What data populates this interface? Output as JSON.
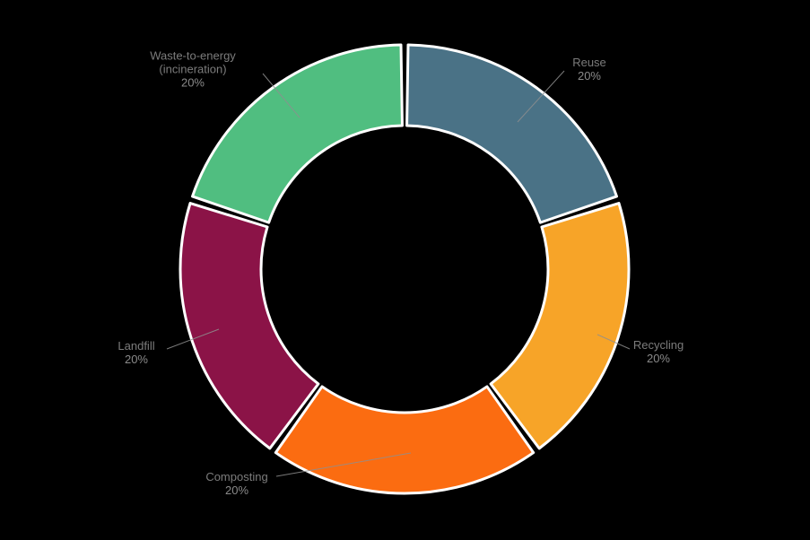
{
  "chart_data": {
    "type": "pie",
    "variant": "donut",
    "title": "",
    "legend_position": "none (direct labels with leader lines)",
    "categories": [
      "Reuse",
      "Recycling",
      "Composting",
      "Landfill",
      "Waste-to-energy (incineration)"
    ],
    "values": [
      20,
      20,
      20,
      20,
      20
    ],
    "pcts": [
      "20%",
      "20%",
      "20%",
      "20%",
      "20%"
    ],
    "colors": [
      "#4A7286",
      "#F7A428",
      "#FB6C11",
      "#8B1347",
      "#50BE80"
    ],
    "multiline_label": {
      "line1": "Waste-to-energy",
      "line2": "(incineration)"
    },
    "separator_color": "#FFFFFF",
    "label_color": "#7c7c7c",
    "leader_line_color": "#8f8f8f",
    "background_color": "#000000"
  }
}
